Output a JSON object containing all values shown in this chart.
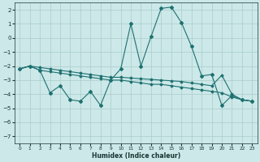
{
  "xlabel": "Humidex (Indice chaleur)",
  "xlim": [
    -0.5,
    23.5
  ],
  "ylim": [
    -7.5,
    2.5
  ],
  "xticks": [
    0,
    1,
    2,
    3,
    4,
    5,
    6,
    7,
    8,
    9,
    10,
    11,
    12,
    13,
    14,
    15,
    16,
    17,
    18,
    19,
    20,
    21,
    22,
    23
  ],
  "yticks": [
    -7,
    -6,
    -5,
    -4,
    -3,
    -2,
    -1,
    0,
    1,
    2
  ],
  "bg_color": "#cce8e8",
  "grid_color": "#aacccc",
  "line_color": "#1e7070",
  "line1_x": [
    0,
    1,
    2,
    3,
    4,
    5,
    6,
    7,
    8,
    9,
    10,
    11,
    12,
    13,
    14,
    15,
    16,
    17,
    18,
    19,
    20,
    21,
    22,
    23
  ],
  "line1_y": [
    -2.2,
    -2.0,
    -2.3,
    -2.4,
    -2.5,
    -2.6,
    -2.7,
    -2.8,
    -2.9,
    -3.0,
    -3.0,
    -3.1,
    -3.2,
    -3.3,
    -3.3,
    -3.4,
    -3.5,
    -3.6,
    -3.7,
    -3.8,
    -3.9,
    -4.2,
    -4.4,
    -4.5
  ],
  "line2_x": [
    0,
    1,
    2,
    3,
    4,
    5,
    6,
    7,
    8,
    9,
    10,
    11,
    12,
    13,
    14,
    15,
    16,
    17,
    18,
    19,
    20,
    21,
    22,
    23
  ],
  "line2_y": [
    -2.2,
    -2.0,
    -2.1,
    -2.2,
    -2.3,
    -2.4,
    -2.5,
    -2.6,
    -2.7,
    -2.8,
    -2.8,
    -2.85,
    -2.9,
    -2.95,
    -3.0,
    -3.05,
    -3.1,
    -3.2,
    -3.3,
    -3.4,
    -2.65,
    -4.0,
    -4.4,
    -4.5
  ],
  "line3_x": [
    0,
    1,
    2,
    3,
    4,
    5,
    6,
    7,
    8,
    9,
    10,
    11,
    12,
    13,
    14,
    15,
    16,
    17,
    18,
    19,
    20,
    21,
    22,
    23
  ],
  "line3_y": [
    -2.2,
    -2.0,
    -2.3,
    -3.9,
    -3.4,
    -4.4,
    -4.5,
    -3.8,
    -4.8,
    -3.0,
    -2.2,
    1.0,
    -2.0,
    0.1,
    2.1,
    2.2,
    1.1,
    -0.6,
    -2.7,
    -2.6,
    -4.8,
    -4.1,
    -4.4,
    -4.5
  ]
}
